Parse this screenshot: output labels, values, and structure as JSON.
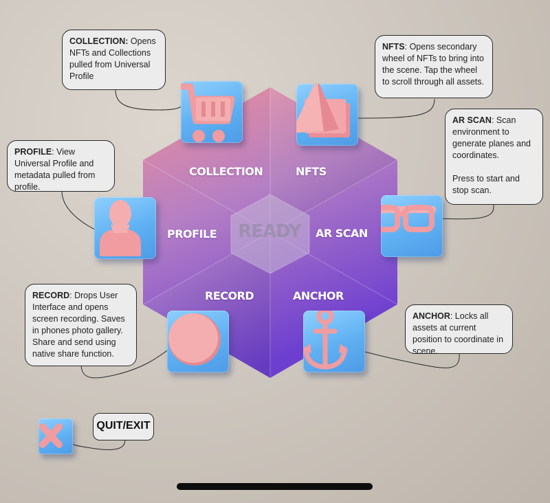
{
  "center": {
    "status": "READY"
  },
  "segments": {
    "collection": "COLLECTION",
    "nfts": "NFTS",
    "ar_scan": "AR SCAN",
    "profile": "PROFILE",
    "record": "RECORD",
    "anchor": "ANCHOR"
  },
  "callouts": {
    "collection": {
      "title": "COLLECTION:",
      "text": " Opens NFTs and Collections pulled from Universal Profile"
    },
    "nfts": {
      "title": "NFTS",
      "text": ": Opens secondary wheel of NFTs to bring into the scene. Tap the wheel to scroll through all assets."
    },
    "ar_scan": {
      "title": "AR SCAN",
      "text": ": Scan environment to generate planes and coordinates.",
      "text2": "Press to start and stop scan."
    },
    "profile": {
      "title": "PROFILE",
      "text": ": View Universal Profile and metadata pulled from profile."
    },
    "record": {
      "title": "RECORD",
      "text": ": Drops User Interface and opens screen recording. Saves in phones photo gallery. Share and send using native share function."
    },
    "anchor": {
      "title": "ANCHOR",
      "text": ": Locks all assets at current position  to coordinate in scene."
    }
  },
  "quit": {
    "label": "QUIT/EXIT"
  },
  "icons": {
    "collection": "shopping-cart-icon",
    "nfts": "pyramid-cards-icon",
    "ar_scan": "glasses-icon",
    "profile": "person-icon",
    "record": "record-circle-icon",
    "anchor": "anchor-icon",
    "quit": "close-x-icon"
  },
  "colors": {
    "tile": "#5fb0f2",
    "icon": "#f2a3a3",
    "wheel_top": "#e8909b",
    "wheel_bottom": "#7a45d4"
  }
}
